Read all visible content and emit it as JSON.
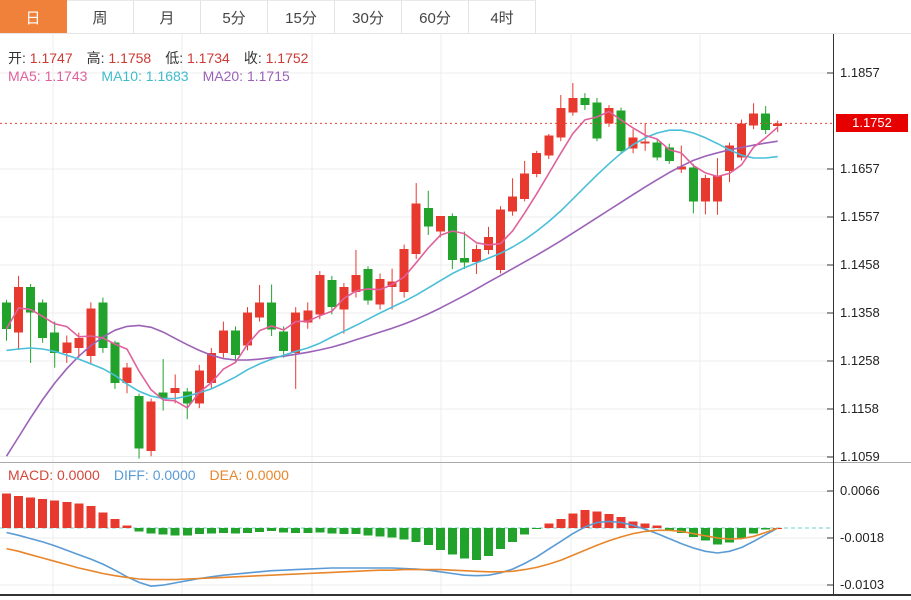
{
  "toolbar": {
    "tabs": [
      {
        "label": "日",
        "active": true
      },
      {
        "label": "周",
        "active": false
      },
      {
        "label": "月",
        "active": false
      },
      {
        "label": "5分",
        "active": false
      },
      {
        "label": "15分",
        "active": false
      },
      {
        "label": "30分",
        "active": false
      },
      {
        "label": "60分",
        "active": false
      },
      {
        "label": "4时",
        "active": false
      }
    ]
  },
  "ohlc_header": {
    "items": [
      {
        "label": "开:",
        "value": "1.1747"
      },
      {
        "label": "高:",
        "value": "1.1758"
      },
      {
        "label": "低:",
        "value": "1.1734"
      },
      {
        "label": "收:",
        "value": "1.1752"
      }
    ],
    "value_color": "#cc3b35"
  },
  "ma_header": {
    "items": [
      {
        "label": "MA5:",
        "value": "1.1743",
        "color": "#e0609c"
      },
      {
        "label": "MA10:",
        "value": "1.1683",
        "color": "#3fbccc"
      },
      {
        "label": "MA20:",
        "value": "1.1715",
        "color": "#9b62b8"
      }
    ]
  },
  "macd_header": {
    "items": [
      {
        "label": "MACD:",
        "value": "0.0000",
        "color": "#d3463a"
      },
      {
        "label": "DIFF:",
        "value": "0.0000",
        "color": "#5b9bd5"
      },
      {
        "label": "DEA:",
        "value": "0.0000",
        "color": "#e8862c"
      }
    ]
  },
  "price_marker": {
    "value": "1.1752",
    "bg": "#e60000"
  },
  "colors": {
    "up": "#e8392f",
    "down": "#21a32b",
    "ma5": "#e0609c",
    "ma10": "#49bfd8",
    "ma20": "#9b62b8",
    "diff": "#5b9bd5",
    "dea": "#e8862c",
    "price_line": "#e04b3b",
    "zero_line": "#6ecfcf",
    "grid": "#ececec",
    "axis": "#333333",
    "tab_active": "#f0813a"
  },
  "chart_data": [
    {
      "type": "candlestick",
      "title": "",
      "ylabel": "price",
      "ylim": [
        1.1048,
        1.194
      ],
      "grid": true,
      "y_tick_labels": [
        1.1857,
        1.1657,
        1.1557,
        1.1458,
        1.1358,
        1.1258,
        1.1158,
        1.1059
      ],
      "grid_prices": [
        1.1857,
        1.1657,
        1.1557,
        1.1458,
        1.1358,
        1.1258,
        1.1158,
        1.1059
      ],
      "last_price_line": 1.1752,
      "candles_ohlc": [
        [
          1.138,
          1.1385,
          1.13,
          1.1325
        ],
        [
          1.1317,
          1.1435,
          1.1281,
          1.1412
        ],
        [
          1.1412,
          1.1418,
          1.1254,
          1.1359
        ],
        [
          1.138,
          1.1386,
          1.1296,
          1.1306
        ],
        [
          1.1317,
          1.134,
          1.1244,
          1.1275
        ],
        [
          1.1275,
          1.1311,
          1.1254,
          1.1296
        ],
        [
          1.1285,
          1.1317,
          1.1265,
          1.1306
        ],
        [
          1.1268,
          1.138,
          1.125,
          1.1367
        ],
        [
          1.138,
          1.139,
          1.1275,
          1.1285
        ],
        [
          1.1296,
          1.13,
          1.12,
          1.1212
        ],
        [
          1.1212,
          1.1254,
          1.1191,
          1.1244
        ],
        [
          1.1185,
          1.119,
          1.1055,
          1.1076
        ],
        [
          1.1071,
          1.118,
          1.106,
          1.1174
        ],
        [
          1.1193,
          1.1262,
          1.1155,
          1.118
        ],
        [
          1.1191,
          1.123,
          1.117,
          1.1202
        ],
        [
          1.1195,
          1.1202,
          1.1137,
          1.117
        ],
        [
          1.117,
          1.125,
          1.116,
          1.1238
        ],
        [
          1.1212,
          1.1285,
          1.12,
          1.1275
        ],
        [
          1.1275,
          1.134,
          1.1265,
          1.1321
        ],
        [
          1.1321,
          1.133,
          1.1255,
          1.1271
        ],
        [
          1.129,
          1.137,
          1.128,
          1.1359
        ],
        [
          1.1348,
          1.1416,
          1.134,
          1.138
        ],
        [
          1.138,
          1.1417,
          1.131,
          1.1323
        ],
        [
          1.1319,
          1.133,
          1.1265,
          1.1279
        ],
        [
          1.1275,
          1.137,
          1.12,
          1.1359
        ],
        [
          1.1338,
          1.138,
          1.1325,
          1.1363
        ],
        [
          1.1355,
          1.1445,
          1.1345,
          1.1437
        ],
        [
          1.1426,
          1.1435,
          1.1355,
          1.137
        ],
        [
          1.1365,
          1.142,
          1.1315,
          1.1412
        ],
        [
          1.1401,
          1.1489,
          1.139,
          1.1437
        ],
        [
          1.1449,
          1.1455,
          1.1375,
          1.1384
        ],
        [
          1.1376,
          1.144,
          1.1365,
          1.1428
        ],
        [
          1.1412,
          1.145,
          1.1365,
          1.1423
        ],
        [
          1.1401,
          1.15,
          1.139,
          1.1491
        ],
        [
          1.1481,
          1.1628,
          1.147,
          1.1586
        ],
        [
          1.1576,
          1.1612,
          1.152,
          1.1538
        ],
        [
          1.1527,
          1.1545,
          1.1515,
          1.1559
        ],
        [
          1.1559,
          1.1565,
          1.1449,
          1.1468
        ],
        [
          1.1472,
          1.1527,
          1.1449,
          1.1463
        ],
        [
          1.1464,
          1.15,
          1.1439,
          1.1491
        ],
        [
          1.1489,
          1.1537,
          1.148,
          1.1516
        ],
        [
          1.1447,
          1.158,
          1.144,
          1.1573
        ],
        [
          1.1569,
          1.1638,
          1.156,
          1.16
        ],
        [
          1.1595,
          1.1674,
          1.159,
          1.1648
        ],
        [
          1.1647,
          1.1695,
          1.164,
          1.1691
        ],
        [
          1.1685,
          1.173,
          1.1678,
          1.1727
        ],
        [
          1.1723,
          1.1811,
          1.1715,
          1.1784
        ],
        [
          1.1775,
          1.1836,
          1.1768,
          1.1805
        ],
        [
          1.1805,
          1.1815,
          1.178,
          1.179
        ],
        [
          1.1796,
          1.1805,
          1.1715,
          1.1721
        ],
        [
          1.1752,
          1.179,
          1.1745,
          1.1784
        ],
        [
          1.1779,
          1.1785,
          1.1688,
          1.1695
        ],
        [
          1.17,
          1.174,
          1.169,
          1.1723
        ],
        [
          1.171,
          1.1752,
          1.1695,
          1.1714
        ],
        [
          1.1712,
          1.172,
          1.1675,
          1.1681
        ],
        [
          1.1702,
          1.171,
          1.1668,
          1.1674
        ],
        [
          1.1656,
          1.1706,
          1.1649,
          1.1662
        ],
        [
          1.166,
          1.1668,
          1.1565,
          1.159
        ],
        [
          1.159,
          1.1645,
          1.1563,
          1.1639
        ],
        [
          1.159,
          1.168,
          1.1562,
          1.1643
        ],
        [
          1.1653,
          1.1712,
          1.163,
          1.1706
        ],
        [
          1.1681,
          1.176,
          1.1675,
          1.1752
        ],
        [
          1.1748,
          1.1794,
          1.174,
          1.1773
        ],
        [
          1.1773,
          1.1788,
          1.173,
          1.1738
        ],
        [
          1.1747,
          1.1758,
          1.1734,
          1.1752
        ]
      ],
      "series": [
        {
          "name": "MA5",
          "derived_window": 5,
          "last": 1.1743
        },
        {
          "name": "MA10",
          "last": 1.1683,
          "values": [
            1.128,
            1.1283,
            1.1285,
            1.1283,
            1.1278,
            1.127,
            1.1262,
            1.1252,
            1.1242,
            1.1228,
            1.121,
            1.1195,
            1.1185,
            1.118,
            1.118,
            1.1185,
            1.1192,
            1.12,
            1.1212,
            1.1225,
            1.124,
            1.1252,
            1.1262,
            1.127,
            1.1278,
            1.1285,
            1.1295,
            1.1308,
            1.132,
            1.1332,
            1.1345,
            1.1358,
            1.137,
            1.1382,
            1.1395,
            1.141,
            1.1425,
            1.144,
            1.1452,
            1.1462,
            1.1472,
            1.1482,
            1.1495,
            1.151,
            1.1528,
            1.1548,
            1.157,
            1.1595,
            1.162,
            1.1645,
            1.1668,
            1.169,
            1.1708,
            1.1722,
            1.1732,
            1.1738,
            1.1738,
            1.1732,
            1.1722,
            1.171,
            1.1697,
            1.1686,
            1.168,
            1.168,
            1.1683
          ]
        },
        {
          "name": "MA20",
          "last": 1.1715,
          "values": [
            1.106,
            1.11,
            1.114,
            1.1178,
            1.1212,
            1.1242,
            1.1268,
            1.129,
            1.1308,
            1.1322,
            1.133,
            1.1332,
            1.1328,
            1.1318,
            1.1305,
            1.1292,
            1.128,
            1.127,
            1.1263,
            1.126,
            1.126,
            1.1262,
            1.1265,
            1.1268,
            1.1272,
            1.1276,
            1.1281,
            1.1287,
            1.1294,
            1.1302,
            1.131,
            1.1318,
            1.1326,
            1.1335,
            1.1345,
            1.1356,
            1.1368,
            1.1381,
            1.1394,
            1.1408,
            1.1422,
            1.1436,
            1.145,
            1.1464,
            1.1478,
            1.1493,
            1.1508,
            1.1524,
            1.154,
            1.1556,
            1.1572,
            1.1588,
            1.1604,
            1.162,
            1.1635,
            1.165,
            1.1663,
            1.1675,
            1.1684,
            1.1691,
            1.1697,
            1.1702,
            1.1707,
            1.1711,
            1.1715
          ]
        }
      ]
    },
    {
      "type": "bar",
      "title": "MACD",
      "ylim": [
        -0.0119,
        0.0112
      ],
      "y_tick_labels": [
        0.0066,
        -0.0018,
        -0.0103
      ],
      "zero_line": 0,
      "values": [
        0.0062,
        0.0058,
        0.0055,
        0.0052,
        0.005,
        0.0047,
        0.0044,
        0.004,
        0.0028,
        0.0016,
        0.0005,
        -0.0006,
        -0.001,
        -0.0012,
        -0.0013,
        -0.0013,
        -0.0011,
        -0.001,
        -0.0009,
        -0.001,
        -0.0009,
        -0.0007,
        -0.0005,
        -0.0008,
        -0.0009,
        -0.0009,
        -0.0008,
        -0.001,
        -0.0011,
        -0.0011,
        -0.0013,
        -0.0015,
        -0.0017,
        -0.0021,
        -0.0025,
        -0.0031,
        -0.004,
        -0.0048,
        -0.0055,
        -0.0058,
        -0.005,
        -0.0038,
        -0.0025,
        -0.0012,
        -0.0002,
        0.0008,
        0.0016,
        0.0026,
        0.0033,
        0.003,
        0.0025,
        0.002,
        0.0012,
        0.0008,
        0.0005,
        -0.0004,
        -0.0009,
        -0.0016,
        -0.0022,
        -0.003,
        -0.0026,
        -0.0018,
        -0.001,
        -0.0003,
        0.0
      ],
      "series": [
        {
          "name": "DIFF",
          "last": 0.0,
          "values": [
            -0.0008,
            -0.0013,
            -0.0019,
            -0.0025,
            -0.0032,
            -0.004,
            -0.0048,
            -0.0056,
            -0.0065,
            -0.0076,
            -0.0088,
            -0.0098,
            -0.0105,
            -0.0103,
            -0.0099,
            -0.0095,
            -0.0091,
            -0.0088,
            -0.0085,
            -0.0083,
            -0.0081,
            -0.0079,
            -0.0077,
            -0.0076,
            -0.0075,
            -0.0074,
            -0.0073,
            -0.0072,
            -0.0072,
            -0.0072,
            -0.0072,
            -0.0072,
            -0.0072,
            -0.0073,
            -0.0074,
            -0.0076,
            -0.0079,
            -0.0082,
            -0.0085,
            -0.0086,
            -0.0085,
            -0.0081,
            -0.0074,
            -0.0064,
            -0.0052,
            -0.0038,
            -0.0024,
            -0.001,
            0.0002,
            0.001,
            0.0012,
            0.001,
            0.0005,
            -0.0002,
            -0.001,
            -0.0019,
            -0.0028,
            -0.0036,
            -0.0042,
            -0.0045,
            -0.0042,
            -0.0035,
            -0.0024,
            -0.0012,
            0.0
          ]
        },
        {
          "name": "DEA",
          "last": 0.0,
          "values": [
            -0.0037,
            -0.0042,
            -0.0048,
            -0.0054,
            -0.006,
            -0.0066,
            -0.0072,
            -0.0077,
            -0.0082,
            -0.0086,
            -0.0089,
            -0.0092,
            -0.0093,
            -0.0093,
            -0.0093,
            -0.0092,
            -0.0091,
            -0.009,
            -0.0089,
            -0.0088,
            -0.0087,
            -0.0086,
            -0.0085,
            -0.0084,
            -0.0083,
            -0.0082,
            -0.0081,
            -0.008,
            -0.0079,
            -0.0078,
            -0.0077,
            -0.0076,
            -0.0076,
            -0.0075,
            -0.0075,
            -0.0075,
            -0.0075,
            -0.0076,
            -0.0077,
            -0.0078,
            -0.0079,
            -0.0079,
            -0.0078,
            -0.0075,
            -0.0071,
            -0.0065,
            -0.0058,
            -0.0049,
            -0.004,
            -0.0031,
            -0.0023,
            -0.0016,
            -0.001,
            -0.0006,
            -0.0004,
            -0.0004,
            -0.0006,
            -0.001,
            -0.0014,
            -0.0018,
            -0.002,
            -0.0019,
            -0.0015,
            -0.0008,
            0.0
          ]
        }
      ]
    }
  ]
}
